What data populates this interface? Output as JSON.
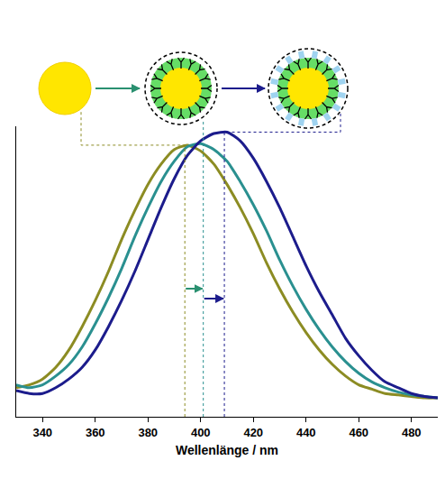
{
  "chart_data": {
    "type": "line",
    "x_label": "Wellenlänge / nm",
    "x": [
      330,
      335,
      340,
      345,
      350,
      355,
      360,
      365,
      370,
      375,
      380,
      385,
      390,
      395,
      400,
      405,
      410,
      415,
      420,
      425,
      430,
      435,
      440,
      445,
      450,
      455,
      460,
      465,
      470,
      475,
      480,
      485,
      490
    ],
    "series": [
      {
        "color": "#8c8c23",
        "peak": 394,
        "values": [
          0.1,
          0.11,
          0.13,
          0.17,
          0.23,
          0.31,
          0.4,
          0.5,
          0.61,
          0.71,
          0.8,
          0.87,
          0.92,
          0.935,
          0.915,
          0.87,
          0.8,
          0.72,
          0.63,
          0.53,
          0.44,
          0.36,
          0.29,
          0.23,
          0.18,
          0.14,
          0.11,
          0.095,
          0.08,
          0.075,
          0.07,
          0.065,
          0.065
        ]
      },
      {
        "color": "#2a9090",
        "peak": 401,
        "values": [
          0.11,
          0.1,
          0.11,
          0.14,
          0.18,
          0.24,
          0.32,
          0.41,
          0.51,
          0.62,
          0.72,
          0.81,
          0.88,
          0.93,
          0.94,
          0.92,
          0.88,
          0.81,
          0.73,
          0.64,
          0.54,
          0.45,
          0.37,
          0.3,
          0.24,
          0.19,
          0.15,
          0.12,
          0.1,
          0.085,
          0.075,
          0.07,
          0.065
        ]
      },
      {
        "color": "#1c1c8c",
        "peak": 409,
        "values": [
          0.09,
          0.08,
          0.08,
          0.1,
          0.13,
          0.17,
          0.23,
          0.31,
          0.4,
          0.5,
          0.61,
          0.72,
          0.82,
          0.9,
          0.95,
          0.975,
          0.98,
          0.95,
          0.89,
          0.81,
          0.72,
          0.62,
          0.52,
          0.43,
          0.35,
          0.27,
          0.21,
          0.16,
          0.12,
          0.1,
          0.08,
          0.07,
          0.065
        ]
      }
    ],
    "xlim": [
      330,
      490
    ],
    "xticks": [
      340,
      360,
      380,
      400,
      420,
      440,
      460,
      480
    ],
    "ylim": [
      0,
      1
    ],
    "tick_labels": "x"
  }
}
